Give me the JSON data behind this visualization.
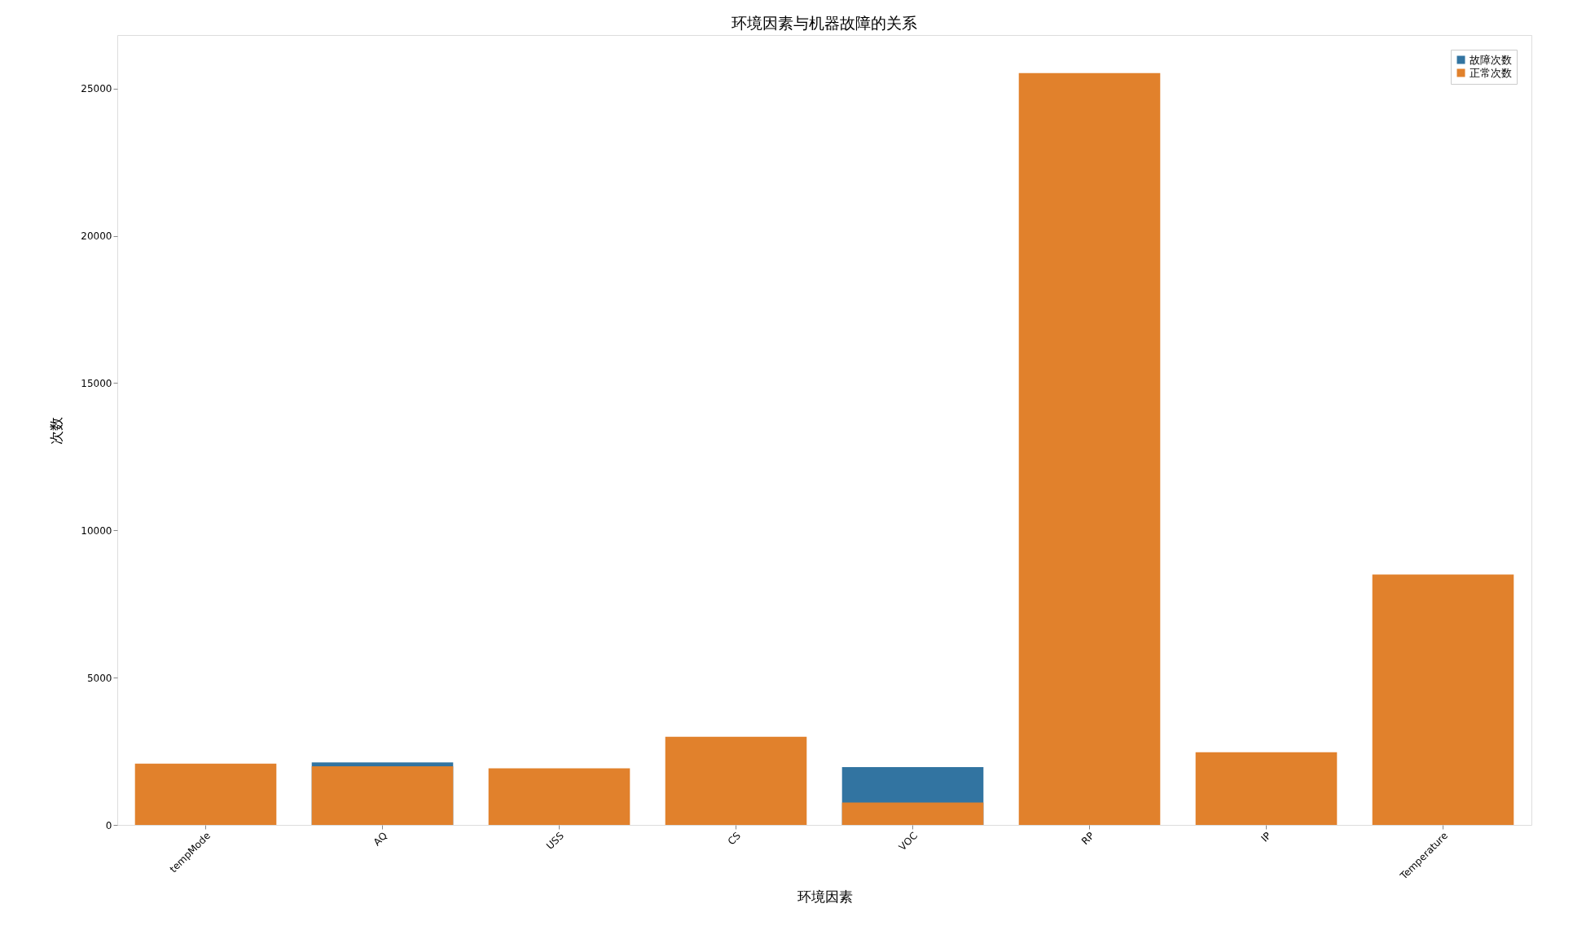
{
  "chart_data": {
    "type": "bar",
    "title": "环境因素与机器故障的关系",
    "xlabel": "环境因素",
    "ylabel": "次数",
    "categories": [
      "tempMode",
      "AQ",
      "USS",
      "CS",
      "VOC",
      "RP",
      "IP",
      "Temperature"
    ],
    "series": [
      {
        "name": "故障次数",
        "color": "#3274a1",
        "values": [
          null,
          2120,
          null,
          null,
          1960,
          null,
          null,
          null
        ]
      },
      {
        "name": "正常次数",
        "color": "#e1812c",
        "values": [
          2080,
          1990,
          1920,
          2990,
          760,
          25530,
          2470,
          8500
        ]
      }
    ],
    "ylim": [
      0,
      26820
    ],
    "yticks": [
      0,
      5000,
      10000,
      15000,
      20000,
      25000
    ],
    "grid": false,
    "legend": "top right"
  }
}
